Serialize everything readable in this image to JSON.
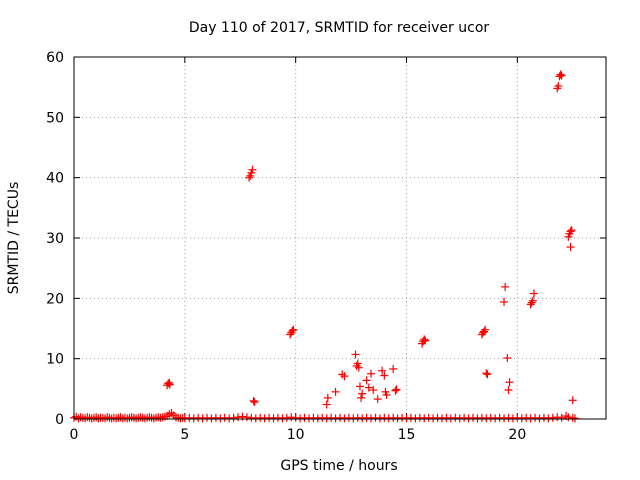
{
  "chart_data": {
    "type": "scatter",
    "title": "Day 110 of 2017, SRMTID for receiver ucor",
    "xlabel": "GPS time / hours",
    "ylabel": "SRMTID / TECUs",
    "xlim": [
      0,
      24
    ],
    "ylim": [
      0,
      60
    ],
    "x_ticks": [
      0,
      5,
      10,
      15,
      20
    ],
    "y_ticks": [
      0,
      10,
      20,
      30,
      40,
      50,
      60
    ],
    "x_tick_labels": [
      "0",
      "5",
      "10",
      "15",
      "20"
    ],
    "y_tick_labels": [
      "0",
      "10",
      "20",
      "30",
      "40",
      "50",
      "60"
    ],
    "grid": true,
    "marker": "+",
    "series": [
      {
        "name": "SRMTID",
        "color": "#ff0000",
        "points": [
          [
            0.0,
            0.2
          ],
          [
            0.1,
            0.4
          ],
          [
            0.2,
            0.1
          ],
          [
            0.3,
            0.3
          ],
          [
            0.4,
            0.2
          ],
          [
            0.5,
            0.1
          ],
          [
            0.6,
            0.3
          ],
          [
            0.7,
            0.2
          ],
          [
            0.8,
            0.1
          ],
          [
            0.9,
            0.2
          ],
          [
            1.0,
            0.3
          ],
          [
            1.1,
            0.1
          ],
          [
            1.2,
            0.2
          ],
          [
            1.3,
            0.2
          ],
          [
            1.4,
            0.1
          ],
          [
            1.5,
            0.3
          ],
          [
            1.6,
            0.2
          ],
          [
            1.7,
            0.1
          ],
          [
            1.8,
            0.2
          ],
          [
            1.9,
            0.1
          ],
          [
            2.0,
            0.2
          ],
          [
            2.1,
            0.3
          ],
          [
            2.2,
            0.1
          ],
          [
            2.3,
            0.2
          ],
          [
            2.4,
            0.1
          ],
          [
            2.5,
            0.2
          ],
          [
            2.6,
            0.3
          ],
          [
            2.7,
            0.2
          ],
          [
            2.8,
            0.1
          ],
          [
            2.9,
            0.2
          ],
          [
            3.0,
            0.3
          ],
          [
            3.1,
            0.2
          ],
          [
            3.2,
            0.1
          ],
          [
            3.3,
            0.2
          ],
          [
            3.4,
            0.3
          ],
          [
            3.5,
            0.2
          ],
          [
            3.6,
            0.1
          ],
          [
            3.7,
            0.2
          ],
          [
            3.8,
            0.3
          ],
          [
            3.9,
            0.2
          ],
          [
            4.0,
            0.3
          ],
          [
            4.1,
            0.4
          ],
          [
            4.2,
            0.5
          ],
          [
            4.3,
            0.8
          ],
          [
            4.4,
            1.0
          ],
          [
            4.5,
            0.6
          ],
          [
            4.6,
            0.3
          ],
          [
            4.7,
            0.2
          ],
          [
            4.8,
            0.1
          ],
          [
            4.9,
            0.2
          ],
          [
            5.0,
            0.1
          ],
          [
            5.2,
            0.2
          ],
          [
            5.4,
            0.1
          ],
          [
            5.6,
            0.2
          ],
          [
            5.8,
            0.1
          ],
          [
            6.0,
            0.2
          ],
          [
            6.2,
            0.1
          ],
          [
            6.4,
            0.2
          ],
          [
            6.6,
            0.1
          ],
          [
            6.8,
            0.2
          ],
          [
            7.0,
            0.1
          ],
          [
            7.2,
            0.2
          ],
          [
            7.4,
            0.3
          ],
          [
            7.6,
            0.4
          ],
          [
            7.8,
            0.3
          ],
          [
            8.0,
            0.2
          ],
          [
            8.2,
            0.1
          ],
          [
            8.4,
            0.2
          ],
          [
            8.6,
            0.1
          ],
          [
            8.8,
            0.2
          ],
          [
            9.0,
            0.1
          ],
          [
            9.2,
            0.2
          ],
          [
            9.4,
            0.1
          ],
          [
            9.6,
            0.2
          ],
          [
            9.8,
            0.3
          ],
          [
            10.0,
            0.2
          ],
          [
            10.2,
            0.1
          ],
          [
            10.4,
            0.2
          ],
          [
            10.6,
            0.1
          ],
          [
            10.8,
            0.2
          ],
          [
            11.0,
            0.1
          ],
          [
            11.2,
            0.2
          ],
          [
            11.4,
            0.1
          ],
          [
            11.6,
            0.2
          ],
          [
            11.8,
            0.1
          ],
          [
            12.0,
            0.2
          ],
          [
            12.2,
            0.1
          ],
          [
            12.4,
            0.2
          ],
          [
            12.6,
            0.1
          ],
          [
            12.8,
            0.2
          ],
          [
            13.0,
            0.1
          ],
          [
            13.2,
            0.2
          ],
          [
            13.4,
            0.1
          ],
          [
            13.6,
            0.2
          ],
          [
            13.8,
            0.1
          ],
          [
            14.0,
            0.2
          ],
          [
            14.2,
            0.1
          ],
          [
            14.4,
            0.2
          ],
          [
            14.6,
            0.1
          ],
          [
            14.8,
            0.2
          ],
          [
            15.0,
            0.1
          ],
          [
            15.2,
            0.2
          ],
          [
            15.4,
            0.1
          ],
          [
            15.6,
            0.2
          ],
          [
            15.8,
            0.1
          ],
          [
            16.0,
            0.2
          ],
          [
            16.2,
            0.1
          ],
          [
            16.4,
            0.2
          ],
          [
            16.6,
            0.1
          ],
          [
            16.8,
            0.2
          ],
          [
            17.0,
            0.1
          ],
          [
            17.2,
            0.2
          ],
          [
            17.4,
            0.1
          ],
          [
            17.6,
            0.2
          ],
          [
            17.8,
            0.1
          ],
          [
            18.0,
            0.2
          ],
          [
            18.2,
            0.1
          ],
          [
            18.4,
            0.2
          ],
          [
            18.6,
            0.1
          ],
          [
            18.8,
            0.2
          ],
          [
            19.0,
            0.1
          ],
          [
            19.2,
            0.2
          ],
          [
            19.4,
            0.1
          ],
          [
            19.6,
            0.2
          ],
          [
            19.8,
            0.1
          ],
          [
            20.0,
            0.2
          ],
          [
            20.2,
            0.1
          ],
          [
            20.4,
            0.2
          ],
          [
            20.6,
            0.1
          ],
          [
            20.8,
            0.2
          ],
          [
            21.0,
            0.1
          ],
          [
            21.2,
            0.2
          ],
          [
            21.4,
            0.1
          ],
          [
            21.6,
            0.2
          ],
          [
            21.8,
            0.3
          ],
          [
            22.0,
            0.2
          ],
          [
            22.2,
            0.5
          ],
          [
            22.3,
            0.3
          ],
          [
            22.5,
            0.2
          ],
          [
            22.6,
            0.1
          ],
          [
            4.2,
            5.6
          ],
          [
            4.25,
            5.9
          ],
          [
            4.3,
            6.0
          ],
          [
            4.32,
            5.7
          ],
          [
            7.9,
            40.0
          ],
          [
            7.95,
            40.3
          ],
          [
            8.0,
            40.8
          ],
          [
            8.05,
            41.3
          ],
          [
            8.1,
            3.0
          ],
          [
            8.15,
            2.8
          ],
          [
            9.75,
            14.0
          ],
          [
            9.8,
            14.3
          ],
          [
            9.85,
            14.6
          ],
          [
            9.9,
            14.8
          ],
          [
            11.4,
            2.4
          ],
          [
            11.45,
            3.5
          ],
          [
            11.8,
            4.5
          ],
          [
            12.1,
            7.4
          ],
          [
            12.2,
            7.1
          ],
          [
            12.7,
            10.7
          ],
          [
            12.75,
            8.8
          ],
          [
            12.8,
            9.2
          ],
          [
            12.85,
            8.5
          ],
          [
            12.9,
            5.4
          ],
          [
            12.95,
            3.5
          ],
          [
            13.0,
            4.2
          ],
          [
            13.2,
            6.4
          ],
          [
            13.3,
            5.2
          ],
          [
            13.4,
            7.5
          ],
          [
            13.5,
            4.8
          ],
          [
            13.7,
            3.3
          ],
          [
            13.9,
            8.0
          ],
          [
            14.0,
            7.2
          ],
          [
            14.05,
            4.5
          ],
          [
            14.1,
            4.0
          ],
          [
            14.4,
            8.3
          ],
          [
            14.5,
            4.7
          ],
          [
            14.55,
            4.9
          ],
          [
            15.7,
            12.5
          ],
          [
            15.75,
            12.9
          ],
          [
            15.8,
            13.2
          ],
          [
            15.85,
            13.0
          ],
          [
            18.4,
            14.0
          ],
          [
            18.45,
            14.3
          ],
          [
            18.5,
            14.5
          ],
          [
            18.55,
            14.8
          ],
          [
            18.6,
            7.6
          ],
          [
            18.65,
            7.4
          ],
          [
            19.45,
            21.9
          ],
          [
            19.4,
            19.4
          ],
          [
            19.55,
            10.1
          ],
          [
            19.6,
            4.8
          ],
          [
            19.65,
            6.1
          ],
          [
            20.6,
            19.0
          ],
          [
            20.65,
            19.3
          ],
          [
            20.7,
            19.6
          ],
          [
            20.75,
            20.8
          ],
          [
            21.8,
            54.8
          ],
          [
            21.85,
            55.2
          ],
          [
            21.9,
            56.8
          ],
          [
            21.95,
            57.1
          ],
          [
            22.0,
            56.9
          ],
          [
            22.3,
            30.2
          ],
          [
            22.35,
            30.7
          ],
          [
            22.4,
            31.1
          ],
          [
            22.45,
            31.3
          ],
          [
            22.4,
            28.5
          ],
          [
            22.5,
            3.1
          ]
        ]
      }
    ]
  }
}
